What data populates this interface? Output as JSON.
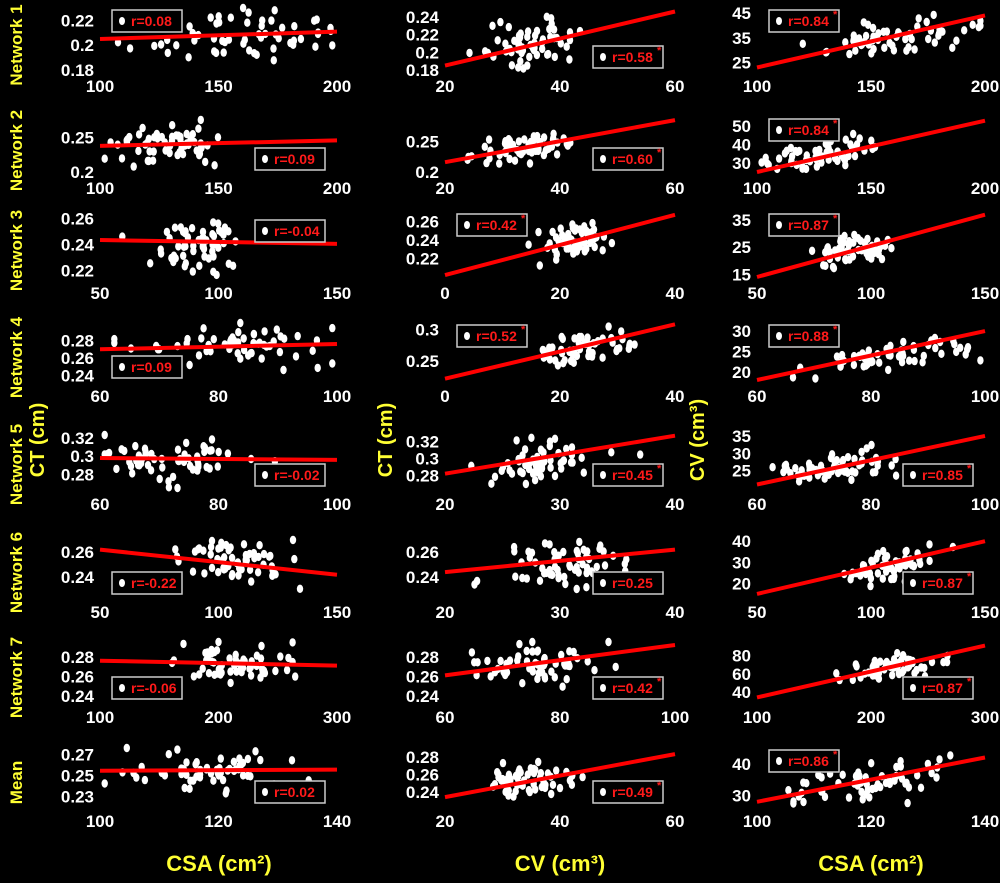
{
  "figure": {
    "row_labels": [
      "Network 1",
      "Network 2",
      "Network 3",
      "Network 4",
      "Network 5",
      "Network 6",
      "Network 7",
      "Mean"
    ],
    "y_axis_labels": [
      "CT (cm)",
      "CT (cm)",
      "CV (cm³)"
    ],
    "x_axis_labels": [
      "CSA (cm²)",
      "CV (cm³)",
      "CSA (cm²)"
    ],
    "colors": {
      "background": "#000000",
      "points": "#ffffff",
      "fit_line": "#ff0000",
      "r_text": "#ff1a1a",
      "axis_labels": "#ffff33",
      "ticks": "#ffffff"
    }
  },
  "chart_data": [
    {
      "type": "scatter",
      "row": "Network 1",
      "xlim": [
        100,
        200
      ],
      "ylim": [
        0.18,
        0.23
      ],
      "xticks": [
        "100",
        "150",
        "200"
      ],
      "yticks": [
        "0.18",
        "0.2",
        "0.22"
      ],
      "r_label": "r=0.08",
      "significant": false,
      "legend_pos": "top-left",
      "fit": {
        "y_at_xmin": 0.205,
        "y_at_xmax": 0.211
      },
      "x_center": 162,
      "x_spread": 22,
      "y_center": 0.208,
      "y_spread": 0.01
    },
    {
      "type": "scatter",
      "row": "Network 1",
      "xlim": [
        20,
        60
      ],
      "ylim": [
        0.18,
        0.25
      ],
      "xticks": [
        "20",
        "40",
        "60"
      ],
      "yticks": [
        "0.18",
        "0.2",
        "0.22",
        "0.24"
      ],
      "r_label": "r=0.58",
      "significant": true,
      "legend_pos": "bottom-right",
      "fit": {
        "y_at_xmin": 0.185,
        "y_at_xmax": 0.246
      },
      "x_center": 36,
      "x_spread": 4,
      "y_center": 0.21,
      "y_spread": 0.012
    },
    {
      "type": "scatter",
      "row": "Network 1",
      "xlim": [
        100,
        200
      ],
      "ylim": [
        22,
        47
      ],
      "xticks": [
        "100",
        "150",
        "200"
      ],
      "yticks": [
        "25",
        "35",
        "45"
      ],
      "r_label": "r=0.84",
      "significant": true,
      "legend_pos": "top-left",
      "fit": {
        "y_at_xmin": 23,
        "y_at_xmax": 44
      },
      "x_center": 162,
      "x_spread": 18,
      "y_center": 35,
      "y_spread": 3
    },
    {
      "type": "scatter",
      "row": "Network 2",
      "xlim": [
        100,
        200
      ],
      "ylim": [
        0.2,
        0.28
      ],
      "xticks": [
        "100",
        "150",
        "200"
      ],
      "yticks": [
        "0.2",
        "0.25"
      ],
      "r_label": "r=0.09",
      "significant": false,
      "legend_pos": "bottom-right",
      "fit": {
        "y_at_xmin": 0.238,
        "y_at_xmax": 0.246
      },
      "x_center": 130,
      "x_spread": 13,
      "y_center": 0.24,
      "y_spread": 0.012
    },
    {
      "type": "scatter",
      "row": "Network 2",
      "xlim": [
        20,
        60
      ],
      "ylim": [
        0.2,
        0.29
      ],
      "xticks": [
        "20",
        "40",
        "60"
      ],
      "yticks": [
        "0.2",
        "0.25"
      ],
      "r_label": "r=0.60",
      "significant": true,
      "legend_pos": "bottom-right",
      "fit": {
        "y_at_xmin": 0.216,
        "y_at_xmax": 0.285
      },
      "x_center": 34,
      "x_spread": 4,
      "y_center": 0.24,
      "y_spread": 0.01
    },
    {
      "type": "scatter",
      "row": "Network 2",
      "xlim": [
        100,
        200
      ],
      "ylim": [
        25,
        55
      ],
      "xticks": [
        "100",
        "150",
        "200"
      ],
      "yticks": [
        "30",
        "40",
        "50"
      ],
      "r_label": "r=0.84",
      "significant": true,
      "legend_pos": "top-left",
      "fit": {
        "y_at_xmin": 25,
        "y_at_xmax": 53
      },
      "x_center": 128,
      "x_spread": 14,
      "y_center": 34,
      "y_spread": 4
    },
    {
      "type": "scatter",
      "row": "Network 3",
      "xlim": [
        50,
        150
      ],
      "ylim": [
        0.215,
        0.265
      ],
      "xticks": [
        "50",
        "100",
        "150"
      ],
      "yticks": [
        "0.22",
        "0.24",
        "0.26"
      ],
      "r_label": "r=-0.04",
      "significant": false,
      "legend_pos": "top-right",
      "fit": {
        "y_at_xmin": 0.2435,
        "y_at_xmax": 0.2405
      },
      "x_center": 92,
      "x_spread": 9,
      "y_center": 0.24,
      "y_spread": 0.01
    },
    {
      "type": "scatter",
      "row": "Network 3",
      "xlim": [
        0,
        40
      ],
      "ylim": [
        0.2,
        0.27
      ],
      "xticks": [
        "0",
        "20",
        "40"
      ],
      "yticks": [
        "0.22",
        "0.24",
        "0.26"
      ],
      "r_label": "r=0.42",
      "significant": true,
      "legend_pos": "top-left",
      "fit": {
        "y_at_xmin": 0.202,
        "y_at_xmax": 0.267
      },
      "x_center": 23,
      "x_spread": 3.5,
      "y_center": 0.24,
      "y_spread": 0.01
    },
    {
      "type": "scatter",
      "row": "Network 3",
      "xlim": [
        50,
        150
      ],
      "ylim": [
        14,
        38
      ],
      "xticks": [
        "50",
        "100",
        "150"
      ],
      "yticks": [
        "15",
        "25",
        "35"
      ],
      "r_label": "r=0.87",
      "significant": true,
      "legend_pos": "top-left",
      "fit": {
        "y_at_xmin": 14,
        "y_at_xmax": 37
      },
      "x_center": 93,
      "x_spread": 9,
      "y_center": 24,
      "y_spread": 2.5
    },
    {
      "type": "scatter",
      "row": "Network 4",
      "xlim": [
        60,
        100
      ],
      "ylim": [
        0.235,
        0.3
      ],
      "xticks": [
        "60",
        "80",
        "100"
      ],
      "yticks": [
        "0.24",
        "0.26",
        "0.28"
      ],
      "r_label": "r=0.09",
      "significant": false,
      "legend_pos": "bottom-left",
      "fit": {
        "y_at_xmin": 0.27,
        "y_at_xmax": 0.276
      },
      "x_center": 82,
      "x_spread": 8,
      "y_center": 0.275,
      "y_spread": 0.011
    },
    {
      "type": "scatter",
      "row": "Network 4",
      "xlim": [
        0,
        40
      ],
      "ylim": [
        0.22,
        0.31
      ],
      "xticks": [
        "0",
        "20",
        "40"
      ],
      "yticks": [
        "0.25",
        "0.3"
      ],
      "r_label": "r=0.52",
      "significant": true,
      "legend_pos": "top-left",
      "fit": {
        "y_at_xmin": 0.222,
        "y_at_xmax": 0.308
      },
      "x_center": 24,
      "x_spread": 3.5,
      "y_center": 0.27,
      "y_spread": 0.011
    },
    {
      "type": "scatter",
      "row": "Network 4",
      "xlim": [
        60,
        100
      ],
      "ylim": [
        18,
        32
      ],
      "xticks": [
        "60",
        "80",
        "100"
      ],
      "yticks": [
        "20",
        "25",
        "30"
      ],
      "r_label": "r=0.88",
      "significant": true,
      "legend_pos": "top-left",
      "fit": {
        "y_at_xmin": 18,
        "y_at_xmax": 30
      },
      "x_center": 83,
      "x_spread": 7,
      "y_center": 24,
      "y_spread": 1.5
    },
    {
      "type": "scatter",
      "row": "Network 5",
      "xlim": [
        60,
        100
      ],
      "ylim": [
        0.265,
        0.33
      ],
      "xticks": [
        "60",
        "80",
        "100"
      ],
      "yticks": [
        "0.28",
        "0.3",
        "0.32"
      ],
      "r_label": "r=-0.02",
      "significant": false,
      "legend_pos": "bottom-right",
      "fit": {
        "y_at_xmin": 0.298,
        "y_at_xmax": 0.296
      },
      "x_center": 72,
      "x_spread": 6,
      "y_center": 0.297,
      "y_spread": 0.012
    },
    {
      "type": "scatter",
      "row": "Network 5",
      "xlim": [
        20,
        40
      ],
      "ylim": [
        0.265,
        0.335
      ],
      "xticks": [
        "20",
        "30",
        "40"
      ],
      "yticks": [
        "0.28",
        "0.3",
        "0.32"
      ],
      "r_label": "r=0.45",
      "significant": true,
      "legend_pos": "bottom-right",
      "fit": {
        "y_at_xmin": 0.282,
        "y_at_xmax": 0.327
      },
      "x_center": 28,
      "x_spread": 3,
      "y_center": 0.298,
      "y_spread": 0.012
    },
    {
      "type": "scatter",
      "row": "Network 5",
      "xlim": [
        60,
        100
      ],
      "ylim": [
        20,
        37
      ],
      "xticks": [
        "60",
        "80",
        "100"
      ],
      "yticks": [
        "25",
        "30",
        "35"
      ],
      "r_label": "r=0.85",
      "significant": true,
      "legend_pos": "bottom-right",
      "fit": {
        "y_at_xmin": 21,
        "y_at_xmax": 35
      },
      "x_center": 73,
      "x_spread": 6,
      "y_center": 26,
      "y_spread": 2
    },
    {
      "type": "scatter",
      "row": "Network 6",
      "xlim": [
        50,
        150
      ],
      "ylim": [
        0.225,
        0.272
      ],
      "xticks": [
        "50",
        "100",
        "150"
      ],
      "yticks": [
        "0.24",
        "0.26"
      ],
      "r_label": "r=-0.22",
      "significant": false,
      "legend_pos": "bottom-left",
      "fit": {
        "y_at_xmin": 0.262,
        "y_at_xmax": 0.242
      },
      "x_center": 108,
      "x_spread": 10,
      "y_center": 0.252,
      "y_spread": 0.009
    },
    {
      "type": "scatter",
      "row": "Network 6",
      "xlim": [
        20,
        40
      ],
      "ylim": [
        0.225,
        0.272
      ],
      "xticks": [
        "20",
        "30",
        "40"
      ],
      "yticks": [
        "0.24",
        "0.26"
      ],
      "r_label": "r=0.25",
      "significant": false,
      "legend_pos": "bottom-right",
      "fit": {
        "y_at_xmin": 0.244,
        "y_at_xmax": 0.262
      },
      "x_center": 30,
      "x_spread": 3,
      "y_center": 0.252,
      "y_spread": 0.009
    },
    {
      "type": "scatter",
      "row": "Network 6",
      "xlim": [
        50,
        150
      ],
      "ylim": [
        14,
        42
      ],
      "xticks": [
        "50",
        "100",
        "150"
      ],
      "yticks": [
        "20",
        "30",
        "40"
      ],
      "r_label": "r=0.87",
      "significant": true,
      "legend_pos": "bottom-right",
      "fit": {
        "y_at_xmin": 15,
        "y_at_xmax": 40
      },
      "x_center": 107,
      "x_spread": 10,
      "y_center": 28,
      "y_spread": 3
    },
    {
      "type": "scatter",
      "row": "Network 7",
      "xlim": [
        100,
        300
      ],
      "ylim": [
        0.235,
        0.295
      ],
      "xticks": [
        "100",
        "200",
        "300"
      ],
      "yticks": [
        "0.24",
        "0.26",
        "0.28"
      ],
      "r_label": "r=-0.06",
      "significant": false,
      "legend_pos": "bottom-left",
      "fit": {
        "y_at_xmin": 0.276,
        "y_at_xmax": 0.271
      },
      "x_center": 215,
      "x_spread": 22,
      "y_center": 0.272,
      "y_spread": 0.011
    },
    {
      "type": "scatter",
      "row": "Network 7",
      "xlim": [
        50,
        100
      ],
      "ylim": [
        0.235,
        0.295
      ],
      "xticks": [
        "60",
        "80",
        "100"
      ],
      "yticks": [
        "0.24",
        "0.26",
        "0.28"
      ],
      "r_label": "r=0.42",
      "significant": true,
      "legend_pos": "bottom-right",
      "fit": {
        "y_at_xmin": 0.261,
        "y_at_xmax": 0.292
      },
      "x_center": 70,
      "x_spread": 7,
      "y_center": 0.272,
      "y_spread": 0.011
    },
    {
      "type": "scatter",
      "row": "Network 7",
      "xlim": [
        100,
        300
      ],
      "ylim": [
        30,
        95
      ],
      "xticks": [
        "100",
        "200",
        "300"
      ],
      "yticks": [
        "40",
        "60",
        "80"
      ],
      "r_label": "r=0.87",
      "significant": true,
      "legend_pos": "bottom-right",
      "fit": {
        "y_at_xmin": 34,
        "y_at_xmax": 91
      },
      "x_center": 215,
      "x_spread": 22,
      "y_center": 66,
      "y_spread": 7
    },
    {
      "type": "scatter",
      "row": "Mean",
      "xlim": [
        100,
        150
      ],
      "ylim": [
        0.222,
        0.276
      ],
      "xticks": [
        "100",
        "120",
        "140"
      ],
      "yticks": [
        "0.23",
        "0.25",
        "0.27"
      ],
      "r_label": "r=0.02",
      "significant": false,
      "legend_pos": "bottom-right",
      "fit": {
        "y_at_xmin": 0.2545,
        "y_at_xmax": 0.2555
      },
      "x_center": 124,
      "x_spread": 9,
      "y_center": 0.255,
      "y_spread": 0.009
    },
    {
      "type": "scatter",
      "row": "Mean",
      "xlim": [
        20,
        60
      ],
      "ylim": [
        0.225,
        0.29
      ],
      "xticks": [
        "20",
        "40",
        "60"
      ],
      "yticks": [
        "0.24",
        "0.26",
        "0.28"
      ],
      "r_label": "r=0.49",
      "significant": true,
      "legend_pos": "bottom-right",
      "fit": {
        "y_at_xmin": 0.234,
        "y_at_xmax": 0.283
      },
      "x_center": 34,
      "x_spread": 4,
      "y_center": 0.255,
      "y_spread": 0.009
    },
    {
      "type": "scatter",
      "row": "Mean",
      "xlim": [
        100,
        150
      ],
      "ylim": [
        27,
        45
      ],
      "xticks": [
        "100",
        "120",
        "140"
      ],
      "yticks": [
        "30",
        "40"
      ],
      "r_label": "r=0.86",
      "significant": true,
      "legend_pos": "top-left",
      "fit": {
        "y_at_xmin": 28,
        "y_at_xmax": 42
      },
      "x_center": 124,
      "x_spread": 9,
      "y_center": 34,
      "y_spread": 3
    }
  ]
}
